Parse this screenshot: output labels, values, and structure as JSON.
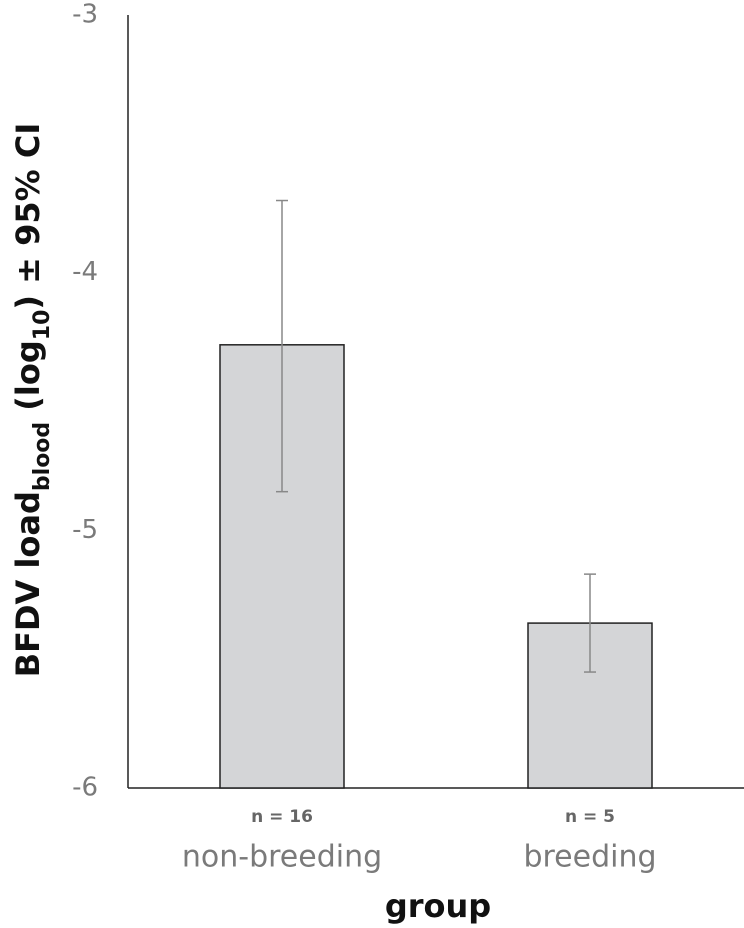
{
  "chart_data": {
    "type": "bar",
    "categories": [
      "non-breeding",
      "breeding"
    ],
    "values": [
      -4.28,
      -5.36
    ],
    "ci_high": [
      -3.72,
      -5.17
    ],
    "ci_low": [
      -4.85,
      -5.55
    ],
    "annotations": [
      "n = 16",
      "n = 5"
    ],
    "color": "#d4d5d7",
    "error_color": "#888888",
    "ylim": [
      -6,
      -3
    ],
    "yticks": [
      -3,
      -4,
      -5,
      -6
    ],
    "xlabel": "group",
    "ylabel_parts": [
      {
        "text": "BFDV load"
      },
      {
        "text": "blood",
        "sub": true
      },
      {
        "text": " (log"
      },
      {
        "text": "10",
        "sub": true
      },
      {
        "text": ") ± 95% CI"
      }
    ]
  }
}
